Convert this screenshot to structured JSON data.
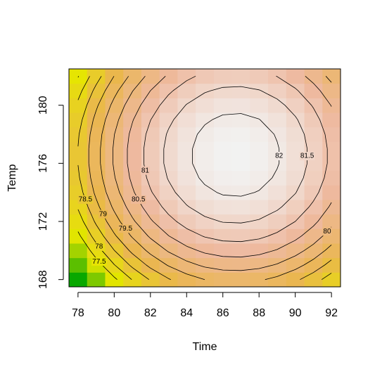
{
  "chart_data": {
    "type": "contour",
    "x_label": "Time",
    "y_label": "Temp",
    "x": [
      78,
      79,
      80,
      81,
      82,
      83,
      84,
      85,
      86,
      87,
      88,
      89,
      90,
      91,
      92
    ],
    "y": [
      168,
      169,
      170,
      171,
      172,
      173,
      174,
      175,
      176,
      177,
      178,
      179,
      180,
      181,
      182
    ],
    "z": [
      [
        75.86,
        76.68,
        77.4,
        78.02,
        78.54,
        78.96,
        79.28,
        79.5,
        79.62,
        79.64,
        79.56,
        79.38,
        79.1,
        78.72,
        78.24
      ],
      [
        76.44,
        77.26,
        77.98,
        78.6,
        79.12,
        79.54,
        79.86,
        80.08,
        80.2,
        80.22,
        80.14,
        79.96,
        79.68,
        79.3,
        78.82
      ],
      [
        76.95,
        77.77,
        78.49,
        79.11,
        79.63,
        80.05,
        80.37,
        80.59,
        80.71,
        80.73,
        80.65,
        80.47,
        80.19,
        79.81,
        79.33
      ],
      [
        77.39,
        78.21,
        78.93,
        79.55,
        80.07,
        80.49,
        80.81,
        81.03,
        81.15,
        81.17,
        81.09,
        80.91,
        80.63,
        80.25,
        79.77
      ],
      [
        77.76,
        78.58,
        79.3,
        79.92,
        80.44,
        80.86,
        81.18,
        81.4,
        81.52,
        81.54,
        81.46,
        81.28,
        81.0,
        80.62,
        80.14
      ],
      [
        78.05,
        78.87,
        79.59,
        80.21,
        80.73,
        81.15,
        81.47,
        81.69,
        81.81,
        81.83,
        81.75,
        81.57,
        81.29,
        80.91,
        80.43
      ],
      [
        78.28,
        79.1,
        79.82,
        80.44,
        80.96,
        81.38,
        81.7,
        81.92,
        82.04,
        82.06,
        81.98,
        81.8,
        81.52,
        81.14,
        80.66
      ],
      [
        78.43,
        79.25,
        79.97,
        80.59,
        81.11,
        81.53,
        81.85,
        82.07,
        82.19,
        82.21,
        82.13,
        81.95,
        81.67,
        81.29,
        80.81
      ],
      [
        78.51,
        79.33,
        80.05,
        80.67,
        81.19,
        81.61,
        81.93,
        82.15,
        82.27,
        82.29,
        82.21,
        82.03,
        81.75,
        81.37,
        80.89
      ],
      [
        78.51,
        79.33,
        80.05,
        80.67,
        81.19,
        81.61,
        81.93,
        82.15,
        82.27,
        82.29,
        82.21,
        82.03,
        81.75,
        81.37,
        80.89
      ],
      [
        78.45,
        79.27,
        79.99,
        80.61,
        81.13,
        81.55,
        81.87,
        82.09,
        82.21,
        82.23,
        82.15,
        81.97,
        81.69,
        81.31,
        80.83
      ],
      [
        78.31,
        79.13,
        79.85,
        80.47,
        80.99,
        81.41,
        81.73,
        81.95,
        82.07,
        82.09,
        82.01,
        81.83,
        81.55,
        81.17,
        80.69
      ],
      [
        78.1,
        78.92,
        79.64,
        80.26,
        80.78,
        81.2,
        81.52,
        81.74,
        81.86,
        81.88,
        81.8,
        81.62,
        81.34,
        80.96,
        80.48
      ],
      [
        77.82,
        78.64,
        79.36,
        79.98,
        80.5,
        80.92,
        81.24,
        81.46,
        81.58,
        81.6,
        81.52,
        81.34,
        81.06,
        80.68,
        80.2
      ],
      [
        77.47,
        78.29,
        79.01,
        79.63,
        80.15,
        80.57,
        80.89,
        81.11,
        81.23,
        81.25,
        81.17,
        80.99,
        80.71,
        80.33,
        79.85
      ]
    ],
    "contour_levels": [
      77.5,
      78,
      78.5,
      79,
      79.5,
      80,
      80.5,
      81,
      81.5,
      82
    ],
    "zlim": [
      75.8,
      82.3
    ],
    "colors": [
      "#00A600",
      "#E6E600",
      "#EAB64E",
      "#EEB99F",
      "#F2F2F2"
    ],
    "contour_color": "#000000",
    "xlim": [
      77.5,
      92.5
    ],
    "ylim": [
      167.5,
      182.5
    ],
    "xticks": [
      78,
      80,
      82,
      84,
      86,
      88,
      90,
      92
    ],
    "yticks": [
      168,
      172,
      176,
      180
    ]
  }
}
